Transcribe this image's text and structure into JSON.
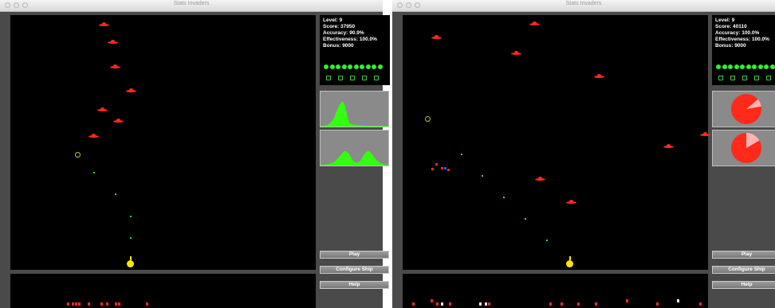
{
  "windows": [
    {
      "title": "Stats Invaders",
      "stats": {
        "level": "Level: 9",
        "score": "Score: 37950",
        "accuracy": "Accuracy: 90.9%",
        "effectiveness": "Effectiveness: 100.0%",
        "bonus": "Bonus: 9000"
      },
      "lives": 10,
      "shields": 5,
      "panels": [
        "distribution-single-peak",
        "distribution-two-peaks"
      ],
      "buttons": {
        "play": "Play",
        "configure": "Configure Ship",
        "help": "Help"
      }
    },
    {
      "title": "Stats Invaders",
      "stats": {
        "level": "Level: 9",
        "score": "Score: 40110",
        "accuracy": "Accuracy: 100.0%",
        "effectiveness": "Effectiveness: 100.0%",
        "bonus": "Bonus: 9000"
      },
      "lives": 10,
      "shields": 5,
      "panels": [
        "pie-chart-small-slice",
        "pie-chart-larger-slice"
      ],
      "buttons": {
        "play": "Play",
        "configure": "Configure Ship",
        "help": "Help"
      }
    }
  ],
  "colors": {
    "invader": "#ff2a1a",
    "ship": "#ffe600",
    "life": "#33ee33",
    "distribution": "#33ff11",
    "pie": "#ff2a1a",
    "pie_slice": "#ffb3b3"
  }
}
